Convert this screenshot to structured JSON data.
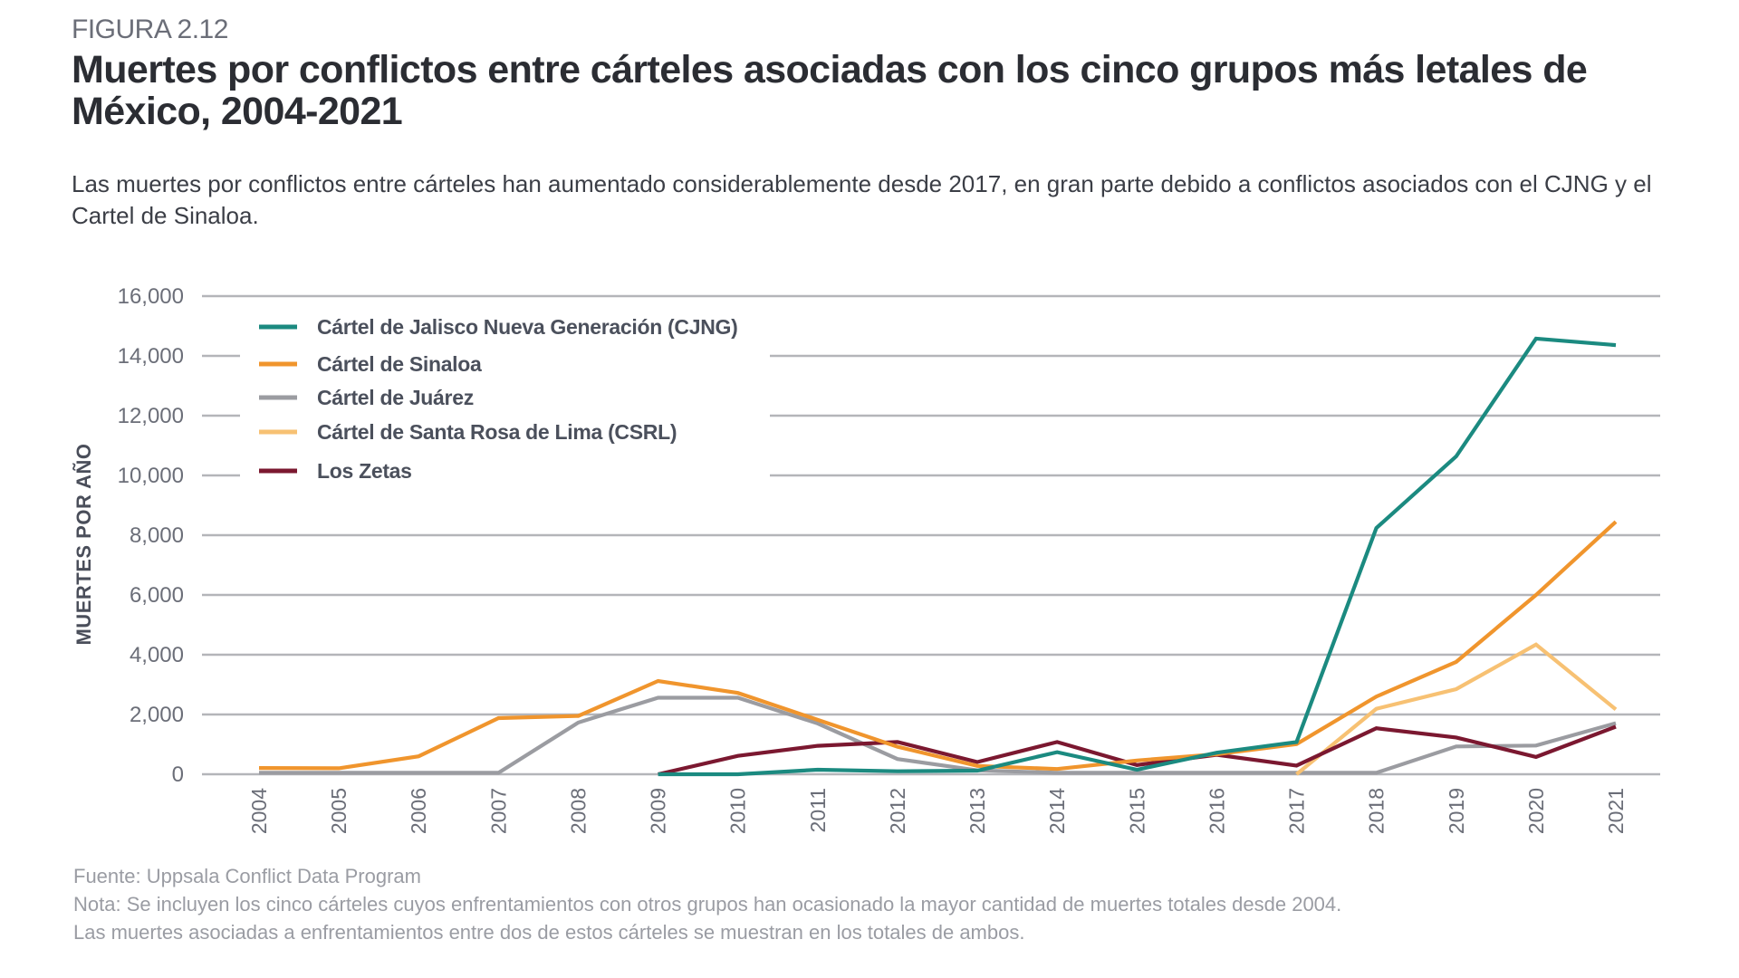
{
  "figure_label": "FIGURA 2.12",
  "title": "Muertes por conflictos entre cárteles asociadas con los cinco grupos más letales de México, 2004-2021",
  "subtitle": "Las muertes por conflictos entre cárteles han aumentado considerablemente desde 2017, en gran parte debido a conflictos asociados con el CJNG y el Cartel de Sinaloa.",
  "footer": {
    "source": "Fuente: Uppsala Conflict Data Program",
    "note_line1": "Nota: Se incluyen los cinco cárteles cuyos enfrentamientos con otros grupos han ocasionado la mayor cantidad de muertes totales desde 2004.",
    "note_line2": "Las muertes asociadas a enfrentamientos entre dos de estos cárteles se muestran en los totales de ambos."
  },
  "chart_data": {
    "type": "line",
    "title": "Muertes por conflictos entre cárteles asociadas con los cinco grupos más letales de México, 2004-2021",
    "xlabel": "",
    "ylabel": "MUERTES POR AÑO",
    "x": [
      "2004",
      "2005",
      "2006",
      "2007",
      "2008",
      "2009",
      "2010",
      "2011",
      "2012",
      "2013",
      "2014",
      "2015",
      "2016",
      "2017",
      "2018",
      "2019",
      "2020",
      "2021"
    ],
    "ylim": [
      0,
      16000
    ],
    "yticks": [
      0,
      2000,
      4000,
      6000,
      8000,
      10000,
      12000,
      14000,
      16000
    ],
    "ytick_labels": [
      "0",
      "2,000",
      "4,000",
      "6,000",
      "8,000",
      "10,000",
      "12,000",
      "14,000",
      "16,000"
    ],
    "grid": true,
    "legend_position": "top-left",
    "series": [
      {
        "name": "Cártel de Jalisco Nueva Generación (CJNG)",
        "color": "#1b8a80",
        "values": [
          null,
          null,
          null,
          null,
          null,
          0,
          0,
          150,
          100,
          120,
          740,
          150,
          720,
          1080,
          8240,
          10640,
          14580,
          14360
        ]
      },
      {
        "name": "Cártel de Sinaloa",
        "color": "#f0952d",
        "values": [
          210,
          200,
          600,
          1880,
          1950,
          3120,
          2720,
          1820,
          920,
          280,
          175,
          460,
          670,
          1010,
          2600,
          3760,
          6000,
          8450
        ]
      },
      {
        "name": "Cártel de Juárez",
        "color": "#9b9ca1",
        "values": [
          50,
          50,
          50,
          50,
          1730,
          2560,
          2560,
          1700,
          510,
          130,
          50,
          50,
          50,
          50,
          50,
          930,
          960,
          1710
        ]
      },
      {
        "name": "Cártel de Santa Rosa de Lima (CSRL)",
        "color": "#f7c173",
        "values": [
          null,
          null,
          null,
          null,
          null,
          null,
          null,
          null,
          null,
          null,
          null,
          null,
          null,
          0,
          2190,
          2850,
          4340,
          2170
        ]
      },
      {
        "name": "Los Zetas",
        "color": "#7b1830",
        "values": [
          null,
          null,
          null,
          null,
          null,
          0,
          615,
          950,
          1080,
          410,
          1080,
          310,
          650,
          290,
          1540,
          1230,
          580,
          1590
        ]
      }
    ]
  }
}
